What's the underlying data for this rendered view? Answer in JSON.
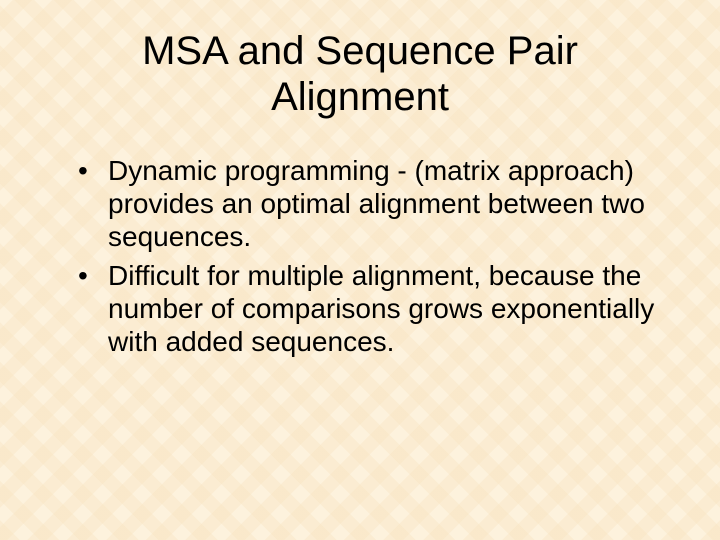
{
  "slide": {
    "title": "MSA and Sequence Pair Alignment",
    "bullets": [
      "Dynamic programming - (matrix approach) provides an optimal alignment between two sequences.",
      "Difficult for multiple alignment, because the number of comparisons grows exponentially with added sequences."
    ],
    "style": {
      "background_color": "#fdf2dd",
      "pattern_color": "#f7e2be",
      "text_color": "#000000",
      "title_fontsize": 40,
      "body_fontsize": 28,
      "font_family": "Arial"
    }
  }
}
